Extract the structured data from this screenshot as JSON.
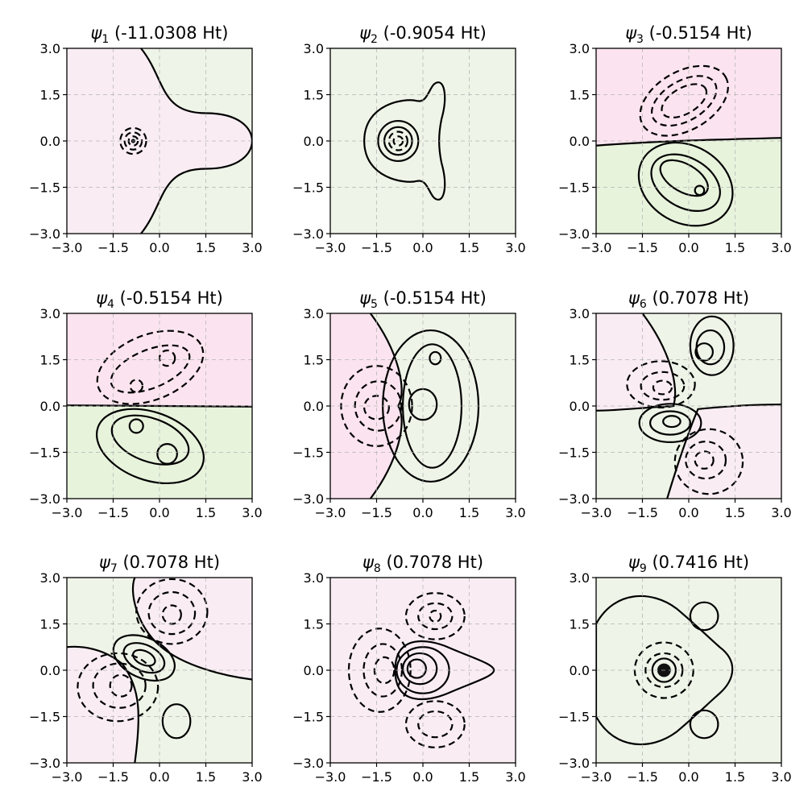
{
  "chart_data": [
    {
      "type": "contour",
      "title_sym": "ψ",
      "title_sub": "1",
      "title_rest": " (-11.0308 Ht)",
      "energy_ht": -11.0308,
      "xlim": [
        -3.0,
        3.0
      ],
      "ylim": [
        -3.0,
        3.0
      ],
      "grid": true,
      "xticks": [
        "−3.0",
        "−1.5",
        "0.0",
        "1.5",
        "3.0"
      ],
      "yticks": [
        "3.0",
        "1.5",
        "0.0",
        "−1.5",
        "−3.0"
      ],
      "negative_color": "#c51b7d",
      "positive_color": "#4d9221"
    },
    {
      "type": "contour",
      "title_sym": "ψ",
      "title_sub": "2",
      "title_rest": " (-0.9054 Ht)",
      "energy_ht": -0.9054,
      "xlim": [
        -3.0,
        3.0
      ],
      "ylim": [
        -3.0,
        3.0
      ],
      "grid": true,
      "xticks": [
        "−3.0",
        "−1.5",
        "0.0",
        "1.5",
        "3.0"
      ],
      "yticks": [
        "3.0",
        "1.5",
        "0.0",
        "−1.5",
        "−3.0"
      ],
      "negative_color": "#c51b7d",
      "positive_color": "#4d9221"
    },
    {
      "type": "contour",
      "title_sym": "ψ",
      "title_sub": "3",
      "title_rest": " (-0.5154 Ht)",
      "energy_ht": -0.5154,
      "xlim": [
        -3.0,
        3.0
      ],
      "ylim": [
        -3.0,
        3.0
      ],
      "grid": true,
      "xticks": [
        "−3.0",
        "−1.5",
        "0.0",
        "1.5",
        "3.0"
      ],
      "yticks": [
        "3.0",
        "1.5",
        "0.0",
        "−1.5",
        "−3.0"
      ],
      "negative_color": "#c51b7d",
      "positive_color": "#4d9221"
    },
    {
      "type": "contour",
      "title_sym": "ψ",
      "title_sub": "4",
      "title_rest": " (-0.5154 Ht)",
      "energy_ht": -0.5154,
      "xlim": [
        -3.0,
        3.0
      ],
      "ylim": [
        -3.0,
        3.0
      ],
      "grid": true,
      "xticks": [
        "−3.0",
        "−1.5",
        "0.0",
        "1.5",
        "3.0"
      ],
      "yticks": [
        "3.0",
        "1.5",
        "0.0",
        "−1.5",
        "−3.0"
      ],
      "negative_color": "#c51b7d",
      "positive_color": "#4d9221"
    },
    {
      "type": "contour",
      "title_sym": "ψ",
      "title_sub": "5",
      "title_rest": " (-0.5154 Ht)",
      "energy_ht": -0.5154,
      "xlim": [
        -3.0,
        3.0
      ],
      "ylim": [
        -3.0,
        3.0
      ],
      "grid": true,
      "xticks": [
        "−3.0",
        "−1.5",
        "0.0",
        "1.5",
        "3.0"
      ],
      "yticks": [
        "3.0",
        "1.5",
        "0.0",
        "−1.5",
        "−3.0"
      ],
      "negative_color": "#c51b7d",
      "positive_color": "#4d9221"
    },
    {
      "type": "contour",
      "title_sym": "ψ",
      "title_sub": "6",
      "title_rest": " (0.7078 Ht)",
      "energy_ht": 0.7078,
      "xlim": [
        -3.0,
        3.0
      ],
      "ylim": [
        -3.0,
        3.0
      ],
      "grid": true,
      "xticks": [
        "−3.0",
        "−1.5",
        "0.0",
        "1.5",
        "3.0"
      ],
      "yticks": [
        "3.0",
        "1.5",
        "0.0",
        "−1.5",
        "−3.0"
      ],
      "negative_color": "#c51b7d",
      "positive_color": "#4d9221"
    },
    {
      "type": "contour",
      "title_sym": "ψ",
      "title_sub": "7",
      "title_rest": " (0.7078 Ht)",
      "energy_ht": 0.7078,
      "xlim": [
        -3.0,
        3.0
      ],
      "ylim": [
        -3.0,
        3.0
      ],
      "grid": true,
      "xticks": [
        "−3.0",
        "−1.5",
        "0.0",
        "1.5",
        "3.0"
      ],
      "yticks": [
        "3.0",
        "1.5",
        "0.0",
        "−1.5",
        "−3.0"
      ],
      "negative_color": "#c51b7d",
      "positive_color": "#4d9221"
    },
    {
      "type": "contour",
      "title_sym": "ψ",
      "title_sub": "8",
      "title_rest": " (0.7078 Ht)",
      "energy_ht": 0.7078,
      "xlim": [
        -3.0,
        3.0
      ],
      "ylim": [
        -3.0,
        3.0
      ],
      "grid": true,
      "xticks": [
        "−3.0",
        "−1.5",
        "0.0",
        "1.5",
        "3.0"
      ],
      "yticks": [
        "3.0",
        "1.5",
        "0.0",
        "−1.5",
        "−3.0"
      ],
      "negative_color": "#c51b7d",
      "positive_color": "#4d9221"
    },
    {
      "type": "contour",
      "title_sym": "ψ",
      "title_sub": "9",
      "title_rest": " (0.7416 Ht)",
      "energy_ht": 0.7416,
      "xlim": [
        -3.0,
        3.0
      ],
      "ylim": [
        -3.0,
        3.0
      ],
      "grid": true,
      "xticks": [
        "−3.0",
        "−1.5",
        "0.0",
        "1.5",
        "3.0"
      ],
      "yticks": [
        "3.0",
        "1.5",
        "0.0",
        "−1.5",
        "−3.0"
      ],
      "negative_color": "#c51b7d",
      "positive_color": "#4d9221"
    }
  ]
}
